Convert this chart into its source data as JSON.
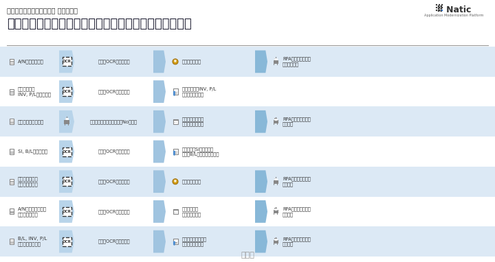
{
  "title_small": "貿易実務における当社実績 イメージ図",
  "title_large": "貿易書類のデータ化から、その他貿易実務の自動化事例",
  "logo_text": "Natic",
  "logo_sub": "Application Modernization Platform",
  "bg_color": "#ffffff",
  "header_bg": "#ffffff",
  "row_bg_light": "#dce9f5",
  "row_bg_dark": "#c5d8ee",
  "arrow_color": "#a8c8e8",
  "ocr_border": "#444444",
  "ocr_text_color": "#333333",
  "rows": [
    {
      "left_label": "B/L, INV, P/L\nと契約のチェック",
      "has_ocr": true,
      "mid_label": "書類のOCRとデータ化",
      "has_checklist": true,
      "right_label": "貿易書類と契約情報\nのチェック自動化",
      "has_calendar": false,
      "has_coin": false,
      "has_robot": true,
      "final_label": "RPAによるシステム\n自動登録",
      "bg": "#dce9f5"
    },
    {
      "left_label": "A/Nから納期情報、\n当日費用を取得",
      "has_ocr": true,
      "mid_label": "書類のOCRとデータ化",
      "has_checklist": false,
      "right_label": "納品予定日、\n当日費用の取得",
      "has_calendar": true,
      "has_coin": true,
      "has_robot": true,
      "final_label": "RPAによるシステム\n自動登録",
      "bg": "#ffffff"
    },
    {
      "left_label": "輸入許可証から\n関税情報を取得",
      "has_ocr": true,
      "mid_label": "書類のOCRとデータ化",
      "has_checklist": false,
      "right_label": "関税情報の取得",
      "has_calendar": false,
      "has_coin": true,
      "has_robot": true,
      "final_label": "RPAによるシステム\n自動登録",
      "bg": "#dce9f5"
    },
    {
      "left_label": "SI, B/Lのチェック",
      "has_ocr": true,
      "mid_label": "書類のOCRとデータ化",
      "has_checklist": true,
      "right_label": "荷主からのSI情報と船社\nからのB/Lのチェック自動化",
      "has_calendar": false,
      "has_coin": false,
      "has_robot": false,
      "final_label": "",
      "bg": "#ffffff"
    },
    {
      "left_label": "荷物のトラッキング",
      "has_ocr": false,
      "mid_label": "船社サイトでトラッキングNoを検索",
      "has_checklist": false,
      "right_label": "荷物の現在地や、\n入国予定日を取得",
      "has_calendar": true,
      "has_coin": false,
      "has_robot": true,
      "final_label": "RPAによるシステム\n自動登録",
      "bg": "#dce9f5"
    },
    {
      "left_label": "輸出許可証と\nINV, P/Lのチェック",
      "has_ocr": true,
      "mid_label": "書類のOCRとデータ化",
      "has_checklist": true,
      "right_label": "輸出許可証とINV, P/L\nのチェック自動化",
      "has_calendar": false,
      "has_coin": false,
      "has_robot": false,
      "final_label": "",
      "bg": "#ffffff"
    },
    {
      "left_label": "A/Nから費用計上",
      "has_ocr": true,
      "mid_label": "書類のOCRとデータ化",
      "has_checklist": false,
      "right_label": "海上運賃の取得",
      "has_calendar": false,
      "has_coin": true,
      "has_robot": true,
      "final_label": "RPAによるシステム\nへの費用登録",
      "bg": "#dce9f5"
    }
  ]
}
